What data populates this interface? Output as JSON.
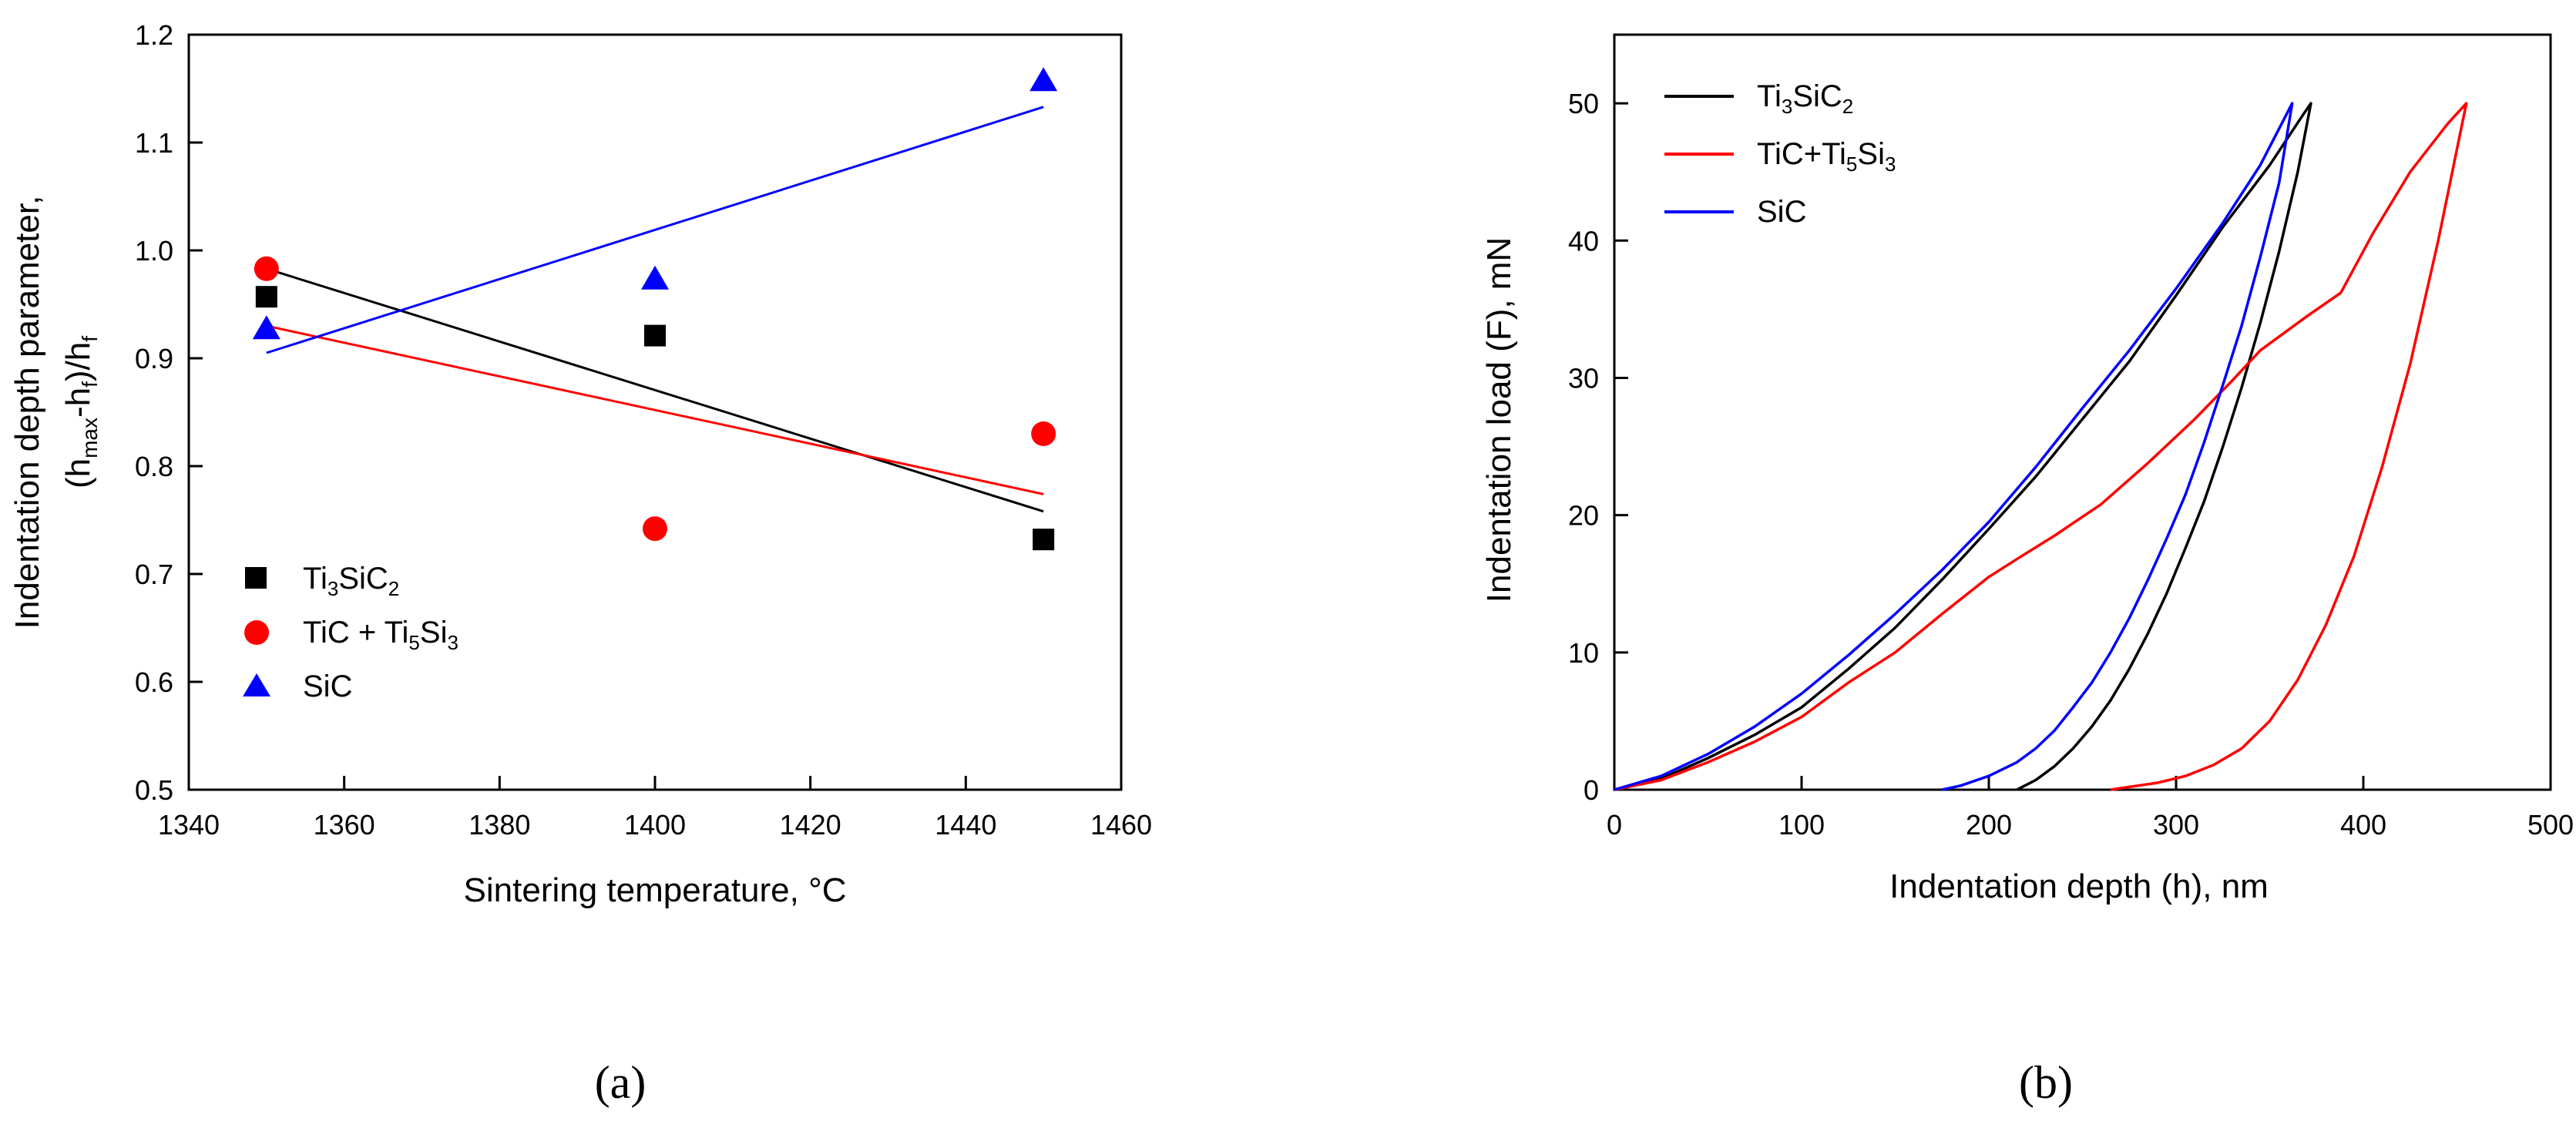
{
  "colors": {
    "black": "#000000",
    "red": "#ff0000",
    "blue": "#0000ff"
  },
  "chart_data": [
    {
      "type": "scatter",
      "panel": "(a)",
      "xlabel": "Sintering temperature, °C",
      "ylabel": {
        "line1": "Indentation depth parameter,",
        "line2_parts": [
          "(h",
          "max",
          "-h",
          "f",
          ")/h",
          "f"
        ]
      },
      "xlim": [
        1340,
        1460
      ],
      "ylim": [
        0.5,
        1.2
      ],
      "xticks": [
        "1340",
        "1360",
        "1380",
        "1400",
        "1420",
        "1440",
        "1460"
      ],
      "xtick_values": [
        1340,
        1360,
        1380,
        1400,
        1420,
        1440,
        1460
      ],
      "yticks": [
        "0.5",
        "0.6",
        "0.7",
        "0.8",
        "0.9",
        "1.0",
        "1.1",
        "1.2"
      ],
      "ytick_values": [
        0.5,
        0.6,
        0.7,
        0.8,
        0.9,
        1.0,
        1.1,
        1.2
      ],
      "legend_position": "bottom-left",
      "series": [
        {
          "name_parts": [
            "Ti",
            "3",
            "SiC",
            "2"
          ],
          "marker": "square",
          "color": "#000000",
          "x": [
            1350,
            1400,
            1450
          ],
          "y": [
            0.957,
            0.921,
            0.732
          ],
          "fit": {
            "x": [
              1350,
              1450
            ],
            "y": [
              0.983,
              0.758
            ]
          }
        },
        {
          "name_parts": [
            "TiC + Ti",
            "5",
            "Si",
            "3"
          ],
          "marker": "circle",
          "color": "#ff0000",
          "x": [
            1350,
            1400,
            1450
          ],
          "y": [
            0.983,
            0.742,
            0.83
          ],
          "fit": {
            "x": [
              1350,
              1450
            ],
            "y": [
              0.93,
              0.774
            ]
          }
        },
        {
          "name_parts": [
            "SiC",
            "",
            "",
            ""
          ],
          "marker": "triangle",
          "color": "#0000ff",
          "x": [
            1350,
            1400,
            1450
          ],
          "y": [
            0.927,
            0.973,
            1.157
          ],
          "fit": {
            "x": [
              1350,
              1450
            ],
            "y": [
              0.905,
              1.133
            ]
          }
        }
      ]
    },
    {
      "type": "line",
      "panel": "(b)",
      "xlabel": "Indentation depth (h), nm",
      "ylabel": "Indentation load (F), mN",
      "xlim": [
        0,
        500
      ],
      "ylim": [
        0,
        55
      ],
      "xticks": [
        "0",
        "100",
        "200",
        "300",
        "400",
        "500"
      ],
      "xtick_values": [
        0,
        100,
        200,
        300,
        400,
        500
      ],
      "yticks": [
        "0",
        "10",
        "20",
        "30",
        "40",
        "50"
      ],
      "ytick_values": [
        0,
        10,
        20,
        30,
        40,
        50
      ],
      "legend_position": "top-left",
      "series": [
        {
          "name_parts": [
            "Ti",
            "3",
            "SiC",
            "2"
          ],
          "color": "#000000",
          "x": [
            0,
            25,
            50,
            75,
            100,
            125,
            150,
            175,
            200,
            225,
            250,
            275,
            300,
            325,
            350,
            368,
            372,
            365,
            355,
            345,
            335,
            325,
            315,
            305,
            295,
            285,
            275,
            265,
            255,
            245,
            235,
            225,
            215
          ],
          "y": [
            0,
            0.8,
            2.3,
            4.0,
            6.0,
            8.8,
            11.8,
            15.3,
            19.0,
            22.8,
            27.0,
            31.2,
            36.0,
            41.0,
            45.5,
            49.2,
            50,
            45.0,
            39.2,
            34.0,
            29.3,
            25.0,
            21.0,
            17.6,
            14.3,
            11.4,
            8.8,
            6.5,
            4.6,
            3.0,
            1.7,
            0.7,
            0
          ]
        },
        {
          "name_parts": [
            "TiC+Ti",
            "5",
            "Si",
            "3"
          ],
          "color": "#ff0000",
          "x": [
            0,
            25,
            50,
            75,
            100,
            125,
            150,
            175,
            200,
            215,
            235,
            260,
            285,
            310,
            330,
            345,
            370,
            388,
            405,
            425,
            445,
            455,
            440,
            425,
            410,
            395,
            380,
            365,
            350,
            335,
            320,
            305,
            290,
            275,
            265
          ],
          "y": [
            0,
            0.7,
            2.0,
            3.5,
            5.3,
            7.8,
            10.0,
            12.8,
            15.5,
            16.8,
            18.5,
            20.8,
            23.8,
            27.0,
            29.8,
            32.0,
            34.5,
            36.2,
            40.5,
            45.0,
            48.5,
            50,
            40.0,
            31.0,
            23.5,
            17.0,
            12.0,
            8.0,
            5.0,
            3.0,
            1.8,
            1.0,
            0.5,
            0.2,
            0
          ]
        },
        {
          "name_parts": [
            "SiC",
            "",
            "",
            ""
          ],
          "color": "#0000ff",
          "x": [
            0,
            25,
            50,
            75,
            100,
            125,
            150,
            175,
            200,
            225,
            250,
            275,
            300,
            325,
            345,
            362,
            355,
            345,
            335,
            325,
            315,
            305,
            295,
            285,
            275,
            265,
            255,
            245,
            235,
            225,
            215,
            200,
            185,
            175
          ],
          "y": [
            0,
            1.0,
            2.6,
            4.6,
            7.0,
            9.8,
            12.8,
            16.0,
            19.5,
            23.5,
            27.8,
            32.0,
            36.5,
            41.3,
            45.5,
            50,
            44.2,
            38.8,
            33.8,
            29.5,
            25.3,
            21.5,
            18.3,
            15.3,
            12.5,
            10.0,
            7.8,
            6.0,
            4.3,
            3.0,
            2.0,
            1.0,
            0.3,
            0
          ]
        }
      ]
    }
  ]
}
